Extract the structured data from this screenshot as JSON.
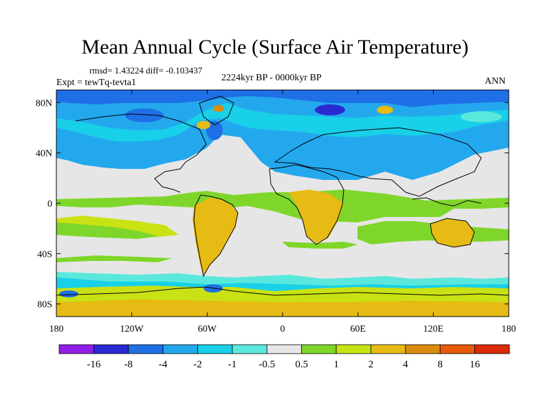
{
  "figure": {
    "title": "Mean Annual Cycle (Surface Air Temperature)",
    "stats": "rmsd= 1.43224  diff= -0.103437",
    "experiment": "Expt = tewTq-tevta1",
    "period": "2224kyr BP - 0000kyr BP",
    "season": "ANN"
  },
  "map_data": {
    "variable": "Surface Air Temperature",
    "projection": "cylindrical equidistant",
    "lon_range": [
      -180,
      180
    ],
    "lat_range": [
      -90,
      90
    ],
    "lat_ticks": [
      {
        "value": 80,
        "label": "80N"
      },
      {
        "value": 40,
        "label": "40N"
      },
      {
        "value": 0,
        "label": "0"
      },
      {
        "value": -40,
        "label": "40S"
      },
      {
        "value": -80,
        "label": "80S"
      }
    ],
    "lon_ticks": [
      {
        "value": -180,
        "label": "180"
      },
      {
        "value": -120,
        "label": "120W"
      },
      {
        "value": -60,
        "label": "60W"
      },
      {
        "value": 0,
        "label": "0"
      },
      {
        "value": 60,
        "label": "60E"
      },
      {
        "value": 120,
        "label": "120E"
      },
      {
        "value": 180,
        "label": "180"
      }
    ],
    "colorbar": {
      "colors": [
        "#8f1ee6",
        "#2a2ad2",
        "#1f6fe6",
        "#23a8ee",
        "#18d0e8",
        "#5be8dc",
        "#e6e6e6",
        "#7fd62a",
        "#c8e214",
        "#e6bb14",
        "#dc8c0a",
        "#e65a0a",
        "#dc2a0a"
      ],
      "labels": [
        "-16",
        "-8",
        "-4",
        "-2",
        "-1",
        "-0.5",
        "0.5",
        "1",
        "2",
        "4",
        "8",
        "16"
      ]
    },
    "coastline_color": "#000000"
  }
}
